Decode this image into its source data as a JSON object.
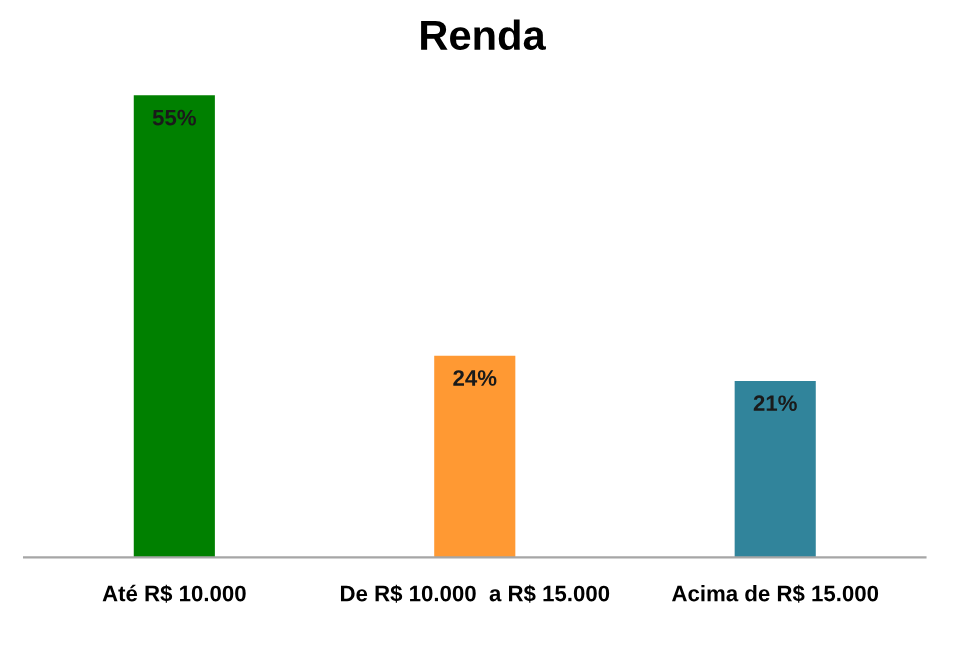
{
  "chart_data": {
    "type": "bar",
    "title": "Renda",
    "categories": [
      "Até R$ 10.000",
      "De R$ 10.000  a R$ 15.000",
      "Acima de R$ 15.000"
    ],
    "values": [
      55,
      24,
      21
    ],
    "colors": [
      "#008000",
      "#ff9933",
      "#31849b"
    ],
    "value_labels": [
      "55%",
      "24%",
      "21%"
    ],
    "grid": false
  }
}
